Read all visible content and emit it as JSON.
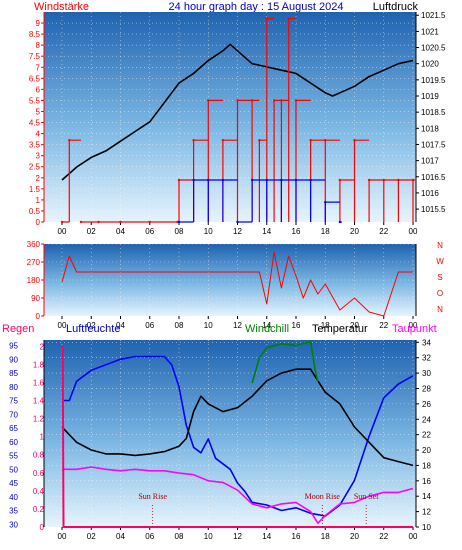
{
  "header": {
    "left_label": "Windstärke",
    "title": "24 hour graph day : 15 August 2024",
    "right_label": "Luftdruck"
  },
  "colors": {
    "wind": "#ff0000",
    "gust": "#0000ff",
    "pressure": "#000000",
    "direction": "#ff0000",
    "humidity": "#0000ff",
    "temperature": "#000000",
    "windchill": "#008000",
    "dewpoint": "#ff00ff",
    "rain": "#ff0066",
    "sun": "#aa0000"
  },
  "chart_data": [
    {
      "type": "line",
      "name": "wind-and-pressure",
      "x_ticks": [
        "00",
        "02",
        "04",
        "06",
        "08",
        "10",
        "12",
        "14",
        "16",
        "18",
        "20",
        "22",
        "00"
      ],
      "left_axis": {
        "label": "Windstärke",
        "ticks": [
          0,
          0.5,
          1,
          1.5,
          2,
          2.5,
          3,
          3.5,
          4,
          4.5,
          5,
          5.5,
          6,
          6.5,
          7,
          7.5,
          8,
          8.5,
          9
        ],
        "ylim": [
          0,
          9.5
        ]
      },
      "right_axis": {
        "label": "Luftdruck",
        "ticks": [
          1015.5,
          1016,
          1016.5,
          1017,
          1017.5,
          1018,
          1018.5,
          1019,
          1019.5,
          1020,
          1020.5,
          1021,
          1021.5
        ],
        "ylim": [
          1015.1,
          1021.6
        ]
      },
      "series": [
        {
          "axis": "right",
          "color": "pressure",
          "x": [
            0,
            1,
            2,
            3,
            4,
            5,
            6,
            7,
            8,
            9,
            10,
            11,
            11.5,
            12,
            13,
            14,
            15,
            16,
            17,
            18,
            18.5,
            19,
            20,
            21,
            22,
            23,
            24
          ],
          "values": [
            1016.4,
            1016.8,
            1017.1,
            1017.3,
            1017.6,
            1017.9,
            1018.2,
            1018.8,
            1019.4,
            1019.7,
            1020.1,
            1020.4,
            1020.6,
            1020.4,
            1020.0,
            1019.9,
            1019.8,
            1019.7,
            1019.4,
            1019.1,
            1019.0,
            1019.1,
            1019.3,
            1019.6,
            1019.8,
            1020.0,
            1020.1
          ]
        },
        {
          "axis": "left",
          "color": "wind",
          "x": [
            0,
            0.5,
            1.3,
            2.5,
            4,
            6,
            7.9,
            8,
            9,
            10,
            11,
            12,
            13,
            13.5,
            14,
            14.5,
            15,
            15.5,
            16,
            17,
            18,
            19,
            20,
            21,
            22,
            23,
            24
          ],
          "values": [
            0,
            3.7,
            0,
            0,
            0,
            0,
            0,
            1.9,
            3.7,
            5.5,
            3.7,
            5.5,
            5.5,
            3.7,
            9.2,
            5.5,
            5.5,
            9.2,
            5.5,
            3.7,
            3.7,
            1.9,
            3.7,
            1.9,
            1.9,
            1.9,
            1.9
          ]
        },
        {
          "axis": "left",
          "color": "gust",
          "x": [
            8,
            9,
            10,
            11,
            12,
            13,
            14,
            15,
            16,
            17,
            18,
            19
          ],
          "values": [
            0,
            1.9,
            1.9,
            1.9,
            0,
            1.9,
            1.9,
            1.9,
            1.9,
            1.9,
            0.9,
            0
          ]
        }
      ]
    },
    {
      "type": "line",
      "name": "wind-direction",
      "x_ticks": [
        "00",
        "02",
        "04",
        "06",
        "08",
        "10",
        "12",
        "14",
        "16",
        "18",
        "20",
        "22",
        "00"
      ],
      "left_axis": {
        "ticks": [
          0,
          90,
          180,
          270,
          360
        ],
        "ylim": [
          0,
          360
        ]
      },
      "right_labels": [
        "N",
        "W",
        "S",
        "O",
        "N"
      ],
      "series": [
        {
          "color": "direction",
          "x": [
            0,
            0.5,
            1,
            2,
            4,
            6,
            8,
            10,
            12,
            13.5,
            14,
            14.5,
            15,
            15.5,
            16,
            16.5,
            17,
            17.5,
            18,
            19,
            20,
            21,
            22,
            23,
            24
          ],
          "values": [
            170,
            300,
            220,
            220,
            220,
            220,
            220,
            220,
            220,
            220,
            60,
            320,
            140,
            300,
            200,
            90,
            180,
            110,
            160,
            30,
            90,
            20,
            0,
            220,
            220
          ]
        }
      ]
    },
    {
      "type": "line",
      "name": "temperature-humidity",
      "legend": [
        "Regen",
        "Luftfeuchte",
        "Windchill",
        "Temperatur",
        "Taupunkt"
      ],
      "x_ticks": [
        "00",
        "02",
        "04",
        "06",
        "08",
        "10",
        "12",
        "14",
        "16",
        "18",
        "20",
        "22",
        "00"
      ],
      "rain_axis": {
        "label": "Regen",
        "ticks": [
          0,
          0.2,
          0.4,
          0.6,
          0.8,
          1,
          1.2,
          1.4,
          1.6,
          1.8,
          2
        ],
        "ylim": [
          0,
          2.07
        ]
      },
      "humidity_axis": {
        "label": "Luftfeuchte",
        "ticks": [
          30,
          35,
          40,
          45,
          50,
          55,
          60,
          65,
          70,
          75,
          80,
          85,
          90,
          95
        ],
        "ylim": [
          29,
          97
        ]
      },
      "temperature_axis": {
        "label": "Temperatur",
        "ticks": [
          10,
          12,
          14,
          16,
          18,
          20,
          22,
          24,
          26,
          28,
          30,
          32,
          34
        ],
        "ylim": [
          10,
          34.3
        ]
      },
      "annotations": [
        {
          "text": "Sun Rise",
          "x": 6.2
        },
        {
          "text": "Moon Rise",
          "x": 17.8
        },
        {
          "text": "Sun Set",
          "x": 20.8
        }
      ],
      "series": [
        {
          "name": "Luftfeuchte",
          "color": "humidity",
          "axis": "humidity",
          "x": [
            0,
            0.5,
            1,
            2,
            3,
            4,
            5,
            6,
            7,
            7.5,
            8,
            8.5,
            9,
            9.5,
            10,
            10.5,
            11,
            11.5,
            12,
            12.5,
            13,
            14,
            15,
            16,
            17,
            18,
            19,
            20,
            21,
            22,
            23,
            24
          ],
          "values": [
            75,
            75,
            82,
            86,
            88,
            90,
            91,
            91,
            91,
            88,
            80,
            66,
            58,
            56,
            61,
            54,
            52,
            50,
            45,
            42,
            38,
            37,
            35,
            36,
            34,
            33,
            37,
            46,
            62,
            76,
            81,
            84
          ]
        },
        {
          "name": "Temperatur",
          "color": "temperature",
          "axis": "temperature",
          "x": [
            0,
            0.5,
            1,
            2,
            3,
            4,
            5,
            6,
            7,
            8,
            8.5,
            9,
            9.5,
            10,
            11,
            12,
            13,
            14,
            15,
            16,
            17,
            17.5,
            18,
            19,
            20,
            21,
            22,
            23,
            24
          ],
          "values": [
            23,
            22,
            21,
            20,
            19.5,
            19.5,
            19.3,
            19.5,
            19.8,
            20.5,
            21.5,
            25,
            27,
            26,
            25,
            25.5,
            27,
            29,
            30,
            30.5,
            30.5,
            29,
            27.5,
            26,
            23,
            21,
            19,
            18.5,
            18
          ]
        },
        {
          "name": "Windchill",
          "color": "windchill",
          "axis": "temperature",
          "x": [
            13,
            13.5,
            14,
            15,
            16,
            17,
            17.3,
            17.5
          ],
          "values": [
            28.7,
            32,
            33.3,
            33.8,
            33.6,
            34.1,
            30.5,
            28.9
          ]
        },
        {
          "name": "Taupunkt",
          "color": "dewpoint",
          "axis": "temperature",
          "x": [
            0,
            1,
            2,
            3,
            4,
            5,
            6,
            7,
            8,
            9,
            10,
            11,
            12,
            13,
            14,
            15,
            16,
            17,
            17.5,
            18,
            19,
            20,
            21,
            22,
            23,
            24
          ],
          "values": [
            17.5,
            17.5,
            17.8,
            17.5,
            17.3,
            17.5,
            17.3,
            17.3,
            17,
            16.8,
            16,
            15.8,
            14.8,
            13,
            12.5,
            13,
            13.2,
            12,
            10.5,
            11.5,
            13,
            13.2,
            14,
            14.5,
            14.5,
            15
          ]
        },
        {
          "name": "Regen",
          "color": "rain",
          "axis": "rain",
          "x": [
            0,
            0.05,
            0.1,
            24
          ],
          "values": [
            2,
            2,
            0,
            0
          ]
        }
      ]
    }
  ]
}
